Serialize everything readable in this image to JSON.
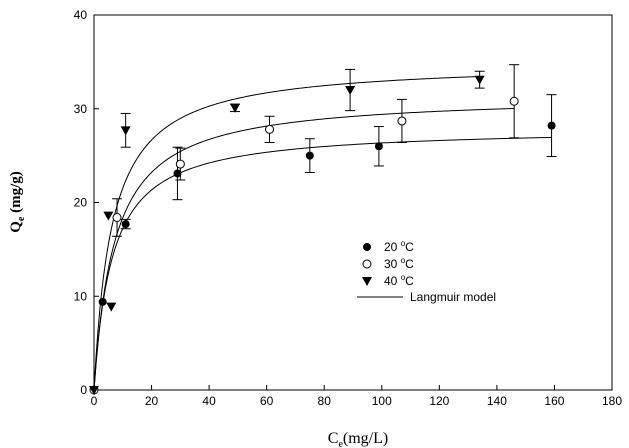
{
  "chart_data": {
    "type": "scatter",
    "xlabel": {
      "main": "C",
      "sub": "e",
      "rest": "(mg/L)"
    },
    "ylabel": {
      "main": "Q",
      "sub": "e",
      "rest": " (mg/g)"
    },
    "xlim": [
      0,
      180
    ],
    "ylim": [
      0,
      40
    ],
    "xticks": [
      0,
      20,
      40,
      60,
      80,
      100,
      120,
      140,
      160,
      180
    ],
    "yticks": [
      0,
      10,
      20,
      30,
      40
    ],
    "grid": false,
    "legend_position": "center-right",
    "series": [
      {
        "name": "20 °C",
        "label_value": "20 ",
        "label_unit": "C",
        "marker": "filled-circle",
        "points": [
          {
            "x": 0,
            "y": 0,
            "err": 0
          },
          {
            "x": 3,
            "y": 9.4,
            "err": 0
          },
          {
            "x": 11,
            "y": 17.7,
            "err": 0.5
          },
          {
            "x": 29,
            "y": 23.1,
            "err": 2.8
          },
          {
            "x": 75,
            "y": 25.0,
            "err": 1.8
          },
          {
            "x": 99,
            "y": 26.0,
            "err": 2.1
          },
          {
            "x": 159,
            "y": 28.2,
            "err": 3.3
          }
        ],
        "langmuir": {
          "qmax": 28.0,
          "kl": 0.16,
          "xmax": 159
        }
      },
      {
        "name": "30 °C",
        "label_value": "30 ",
        "label_unit": "C",
        "marker": "open-circle",
        "points": [
          {
            "x": 0,
            "y": 0,
            "err": 0
          },
          {
            "x": 8,
            "y": 18.4,
            "err": 2.0
          },
          {
            "x": 30,
            "y": 24.1,
            "err": 1.7
          },
          {
            "x": 61,
            "y": 27.8,
            "err": 1.4
          },
          {
            "x": 107,
            "y": 28.7,
            "err": 2.3
          },
          {
            "x": 146,
            "y": 30.8,
            "err": 3.9
          }
        ],
        "langmuir": {
          "qmax": 31.5,
          "kl": 0.14,
          "xmax": 146
        }
      },
      {
        "name": "40 °C",
        "label_value": "40 ",
        "label_unit": "C",
        "marker": "filled-triangle-down",
        "points": [
          {
            "x": 0,
            "y": 0,
            "err": 0
          },
          {
            "x": 6,
            "y": 8.9,
            "err": 0
          },
          {
            "x": 5,
            "y": 18.6,
            "err": 0
          },
          {
            "x": 11,
            "y": 27.7,
            "err": 1.8
          },
          {
            "x": 49,
            "y": 30.1,
            "err": 0.4
          },
          {
            "x": 89,
            "y": 32.0,
            "err": 2.2
          },
          {
            "x": 134,
            "y": 33.1,
            "err": 0.9
          }
        ],
        "langmuir": {
          "qmax": 35.0,
          "kl": 0.16,
          "xmax": 134
        }
      }
    ],
    "legend": {
      "items": [
        "20 °C",
        "30 °C",
        "40 °C",
        "Langmuir model"
      ],
      "model_label": "Langmuir model",
      "degree_symbol": "o"
    }
  }
}
